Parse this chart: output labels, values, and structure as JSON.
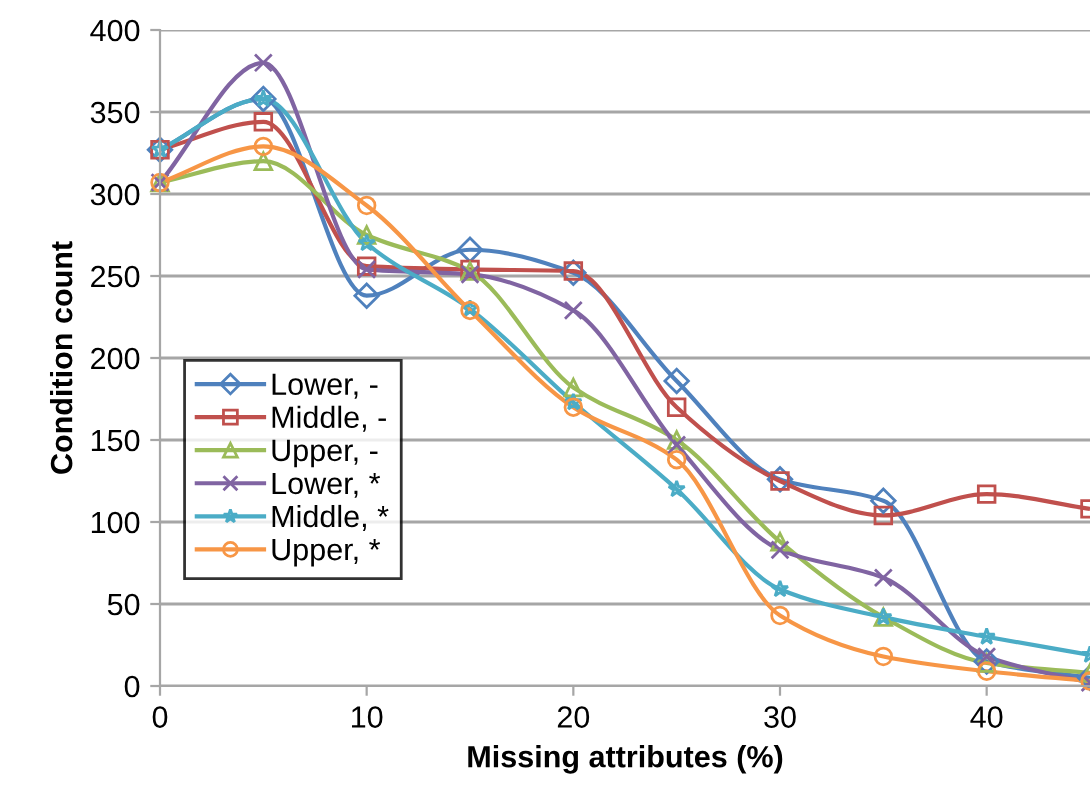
{
  "chart_data": {
    "type": "line",
    "xlabel": "Missing attributes (%)",
    "ylabel": "Condition count",
    "x": [
      0,
      5,
      10,
      15,
      20,
      25,
      30,
      35,
      40,
      45
    ],
    "xlim": [
      0,
      45
    ],
    "xticks": [
      0,
      10,
      20,
      30,
      40
    ],
    "ylim": [
      0,
      400
    ],
    "yticks": [
      0,
      50,
      100,
      150,
      200,
      250,
      300,
      350,
      400
    ],
    "grid": "y",
    "legend": "left",
    "line_style": "solid",
    "series": [
      {
        "name": "Lower, -",
        "color": "#4f81bd",
        "marker": "diamond",
        "values": [
          327,
          358,
          238,
          266,
          252,
          186,
          126,
          113,
          15,
          5
        ]
      },
      {
        "name": "Middle, -",
        "color": "#c0504d",
        "marker": "square",
        "values": [
          327,
          344,
          256,
          254,
          253,
          170,
          125,
          104,
          117,
          108
        ]
      },
      {
        "name": "Upper, -",
        "color": "#9bbb59",
        "marker": "triangle",
        "values": [
          307,
          320,
          275,
          253,
          182,
          150,
          88,
          42,
          14,
          8
        ]
      },
      {
        "name": "Lower, *",
        "color": "#8064a2",
        "marker": "cross",
        "values": [
          307,
          380,
          254,
          251,
          229,
          147,
          83,
          66,
          18,
          2
        ]
      },
      {
        "name": "Middle, *",
        "color": "#4bacc6",
        "marker": "star",
        "values": [
          327,
          358,
          270,
          230,
          173,
          120,
          59,
          42,
          30,
          19
        ]
      },
      {
        "name": "Upper, *",
        "color": "#f79646",
        "marker": "circle",
        "values": [
          307,
          329,
          293,
          229,
          170,
          138,
          43,
          18,
          9,
          3
        ]
      }
    ]
  }
}
